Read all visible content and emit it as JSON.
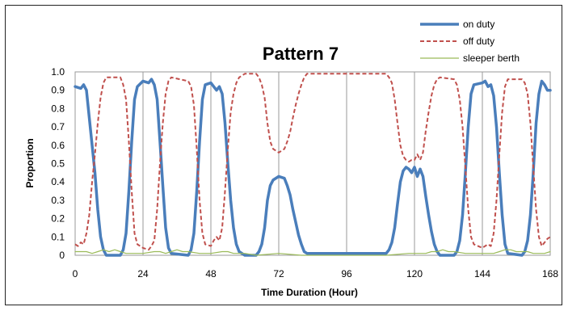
{
  "chart_data": {
    "type": "line",
    "title": "Pattern 7",
    "xlabel": "Time Duration (Hour)",
    "ylabel": "Proportion",
    "xlim": [
      0,
      168
    ],
    "ylim": [
      0,
      1
    ],
    "x_ticks": [
      "0",
      "24",
      "48",
      "72",
      "96",
      "120",
      "144",
      "168"
    ],
    "x_tick_values": [
      0,
      24,
      48,
      72,
      96,
      120,
      144,
      168
    ],
    "y_ticks": [
      "0",
      "0.1",
      "0.2",
      "0.3",
      "0.4",
      "0.5",
      "0.6",
      "0.7",
      "0.8",
      "0.9",
      "1.0"
    ],
    "y_tick_values": [
      0,
      0.1,
      0.2,
      0.3,
      0.4,
      0.5,
      0.6,
      0.7,
      0.8,
      0.9,
      1.0
    ],
    "grid": "vertical at x ticks",
    "legend_position": "top-right",
    "series": [
      {
        "name": "on duty",
        "color": "#4a7ebb",
        "style": "solid",
        "points": [
          [
            0,
            0.92
          ],
          [
            2,
            0.91
          ],
          [
            3,
            0.93
          ],
          [
            4,
            0.9
          ],
          [
            5,
            0.75
          ],
          [
            6,
            0.6
          ],
          [
            7,
            0.45
          ],
          [
            8,
            0.25
          ],
          [
            9,
            0.1
          ],
          [
            10,
            0.03
          ],
          [
            11,
            0.0
          ],
          [
            16,
            0.0
          ],
          [
            17,
            0.03
          ],
          [
            18,
            0.12
          ],
          [
            19,
            0.35
          ],
          [
            20,
            0.62
          ],
          [
            21,
            0.85
          ],
          [
            22,
            0.92
          ],
          [
            24,
            0.95
          ],
          [
            26,
            0.94
          ],
          [
            27,
            0.96
          ],
          [
            28,
            0.93
          ],
          [
            29,
            0.85
          ],
          [
            30,
            0.62
          ],
          [
            31,
            0.38
          ],
          [
            32,
            0.15
          ],
          [
            33,
            0.04
          ],
          [
            34,
            0.01
          ],
          [
            40,
            0.0
          ],
          [
            41,
            0.03
          ],
          [
            42,
            0.12
          ],
          [
            43,
            0.35
          ],
          [
            44,
            0.62
          ],
          [
            45,
            0.85
          ],
          [
            46,
            0.93
          ],
          [
            48,
            0.94
          ],
          [
            49,
            0.92
          ],
          [
            50,
            0.9
          ],
          [
            51,
            0.92
          ],
          [
            52,
            0.88
          ],
          [
            53,
            0.72
          ],
          [
            54,
            0.5
          ],
          [
            55,
            0.3
          ],
          [
            56,
            0.15
          ],
          [
            57,
            0.06
          ],
          [
            58,
            0.02
          ],
          [
            60,
            0.0
          ],
          [
            64,
            0.0
          ],
          [
            65,
            0.02
          ],
          [
            66,
            0.06
          ],
          [
            67,
            0.15
          ],
          [
            68,
            0.3
          ],
          [
            69,
            0.38
          ],
          [
            70,
            0.41
          ],
          [
            72,
            0.43
          ],
          [
            74,
            0.42
          ],
          [
            75,
            0.38
          ],
          [
            76,
            0.33
          ],
          [
            77,
            0.25
          ],
          [
            78,
            0.18
          ],
          [
            79,
            0.11
          ],
          [
            80,
            0.06
          ],
          [
            81,
            0.02
          ],
          [
            82,
            0.01
          ],
          [
            110,
            0.01
          ],
          [
            111,
            0.03
          ],
          [
            112,
            0.07
          ],
          [
            113,
            0.15
          ],
          [
            114,
            0.28
          ],
          [
            115,
            0.4
          ],
          [
            116,
            0.46
          ],
          [
            117,
            0.48
          ],
          [
            118,
            0.47
          ],
          [
            119,
            0.45
          ],
          [
            120,
            0.48
          ],
          [
            121,
            0.43
          ],
          [
            122,
            0.47
          ],
          [
            123,
            0.43
          ],
          [
            124,
            0.32
          ],
          [
            125,
            0.22
          ],
          [
            126,
            0.13
          ],
          [
            127,
            0.06
          ],
          [
            128,
            0.02
          ],
          [
            129,
            0.0
          ],
          [
            134,
            0.0
          ],
          [
            135,
            0.02
          ],
          [
            136,
            0.08
          ],
          [
            137,
            0.22
          ],
          [
            138,
            0.45
          ],
          [
            139,
            0.7
          ],
          [
            140,
            0.88
          ],
          [
            141,
            0.93
          ],
          [
            144,
            0.94
          ],
          [
            145,
            0.95
          ],
          [
            146,
            0.92
          ],
          [
            147,
            0.93
          ],
          [
            148,
            0.87
          ],
          [
            149,
            0.7
          ],
          [
            150,
            0.45
          ],
          [
            151,
            0.22
          ],
          [
            152,
            0.06
          ],
          [
            153,
            0.01
          ],
          [
            158,
            0.0
          ],
          [
            159,
            0.02
          ],
          [
            160,
            0.08
          ],
          [
            161,
            0.22
          ],
          [
            162,
            0.45
          ],
          [
            163,
            0.72
          ],
          [
            164,
            0.88
          ],
          [
            165,
            0.95
          ],
          [
            166,
            0.93
          ],
          [
            167,
            0.9
          ],
          [
            168,
            0.9
          ]
        ]
      },
      {
        "name": "off duty",
        "color": "#c0504d",
        "style": "dashed",
        "points": [
          [
            0,
            0.06
          ],
          [
            1,
            0.05
          ],
          [
            2,
            0.07
          ],
          [
            3,
            0.06
          ],
          [
            4,
            0.12
          ],
          [
            5,
            0.22
          ],
          [
            6,
            0.4
          ],
          [
            7,
            0.55
          ],
          [
            8,
            0.72
          ],
          [
            9,
            0.86
          ],
          [
            10,
            0.94
          ],
          [
            11,
            0.97
          ],
          [
            16,
            0.97
          ],
          [
            17,
            0.93
          ],
          [
            18,
            0.85
          ],
          [
            19,
            0.62
          ],
          [
            20,
            0.35
          ],
          [
            21,
            0.12
          ],
          [
            22,
            0.06
          ],
          [
            24,
            0.04
          ],
          [
            26,
            0.03
          ],
          [
            27,
            0.05
          ],
          [
            28,
            0.08
          ],
          [
            29,
            0.25
          ],
          [
            30,
            0.5
          ],
          [
            31,
            0.72
          ],
          [
            32,
            0.88
          ],
          [
            33,
            0.95
          ],
          [
            34,
            0.97
          ],
          [
            40,
            0.95
          ],
          [
            41,
            0.92
          ],
          [
            42,
            0.82
          ],
          [
            43,
            0.58
          ],
          [
            44,
            0.3
          ],
          [
            45,
            0.12
          ],
          [
            46,
            0.06
          ],
          [
            48,
            0.05
          ],
          [
            49,
            0.08
          ],
          [
            50,
            0.1
          ],
          [
            51,
            0.08
          ],
          [
            52,
            0.15
          ],
          [
            53,
            0.35
          ],
          [
            54,
            0.58
          ],
          [
            55,
            0.78
          ],
          [
            56,
            0.88
          ],
          [
            57,
            0.94
          ],
          [
            58,
            0.97
          ],
          [
            60,
            0.99
          ],
          [
            64,
            0.99
          ],
          [
            65,
            0.97
          ],
          [
            66,
            0.93
          ],
          [
            67,
            0.86
          ],
          [
            68,
            0.72
          ],
          [
            69,
            0.62
          ],
          [
            70,
            0.58
          ],
          [
            72,
            0.56
          ],
          [
            74,
            0.58
          ],
          [
            75,
            0.62
          ],
          [
            76,
            0.67
          ],
          [
            77,
            0.75
          ],
          [
            78,
            0.82
          ],
          [
            79,
            0.88
          ],
          [
            80,
            0.93
          ],
          [
            81,
            0.97
          ],
          [
            82,
            0.99
          ],
          [
            110,
            0.99
          ],
          [
            111,
            0.97
          ],
          [
            112,
            0.94
          ],
          [
            113,
            0.85
          ],
          [
            114,
            0.72
          ],
          [
            115,
            0.6
          ],
          [
            116,
            0.54
          ],
          [
            117,
            0.52
          ],
          [
            118,
            0.51
          ],
          [
            119,
            0.52
          ],
          [
            120,
            0.52
          ],
          [
            121,
            0.55
          ],
          [
            122,
            0.52
          ],
          [
            123,
            0.56
          ],
          [
            124,
            0.68
          ],
          [
            125,
            0.78
          ],
          [
            126,
            0.87
          ],
          [
            127,
            0.93
          ],
          [
            128,
            0.96
          ],
          [
            129,
            0.97
          ],
          [
            134,
            0.96
          ],
          [
            135,
            0.93
          ],
          [
            136,
            0.85
          ],
          [
            137,
            0.7
          ],
          [
            138,
            0.48
          ],
          [
            139,
            0.25
          ],
          [
            140,
            0.1
          ],
          [
            141,
            0.06
          ],
          [
            144,
            0.04
          ],
          [
            145,
            0.05
          ],
          [
            146,
            0.06
          ],
          [
            147,
            0.05
          ],
          [
            148,
            0.12
          ],
          [
            149,
            0.3
          ],
          [
            150,
            0.55
          ],
          [
            151,
            0.78
          ],
          [
            152,
            0.92
          ],
          [
            153,
            0.96
          ],
          [
            158,
            0.96
          ],
          [
            159,
            0.94
          ],
          [
            160,
            0.88
          ],
          [
            161,
            0.72
          ],
          [
            162,
            0.48
          ],
          [
            163,
            0.25
          ],
          [
            164,
            0.1
          ],
          [
            165,
            0.05
          ],
          [
            166,
            0.07
          ],
          [
            167,
            0.09
          ],
          [
            168,
            0.1
          ]
        ]
      },
      {
        "name": "sleeper berth",
        "color": "#9bbb59",
        "style": "solid",
        "points": [
          [
            0,
            0.02
          ],
          [
            4,
            0.02
          ],
          [
            6,
            0.01
          ],
          [
            8,
            0.02
          ],
          [
            10,
            0.03
          ],
          [
            12,
            0.02
          ],
          [
            14,
            0.03
          ],
          [
            16,
            0.02
          ],
          [
            18,
            0.01
          ],
          [
            20,
            0.01
          ],
          [
            24,
            0.01
          ],
          [
            28,
            0.02
          ],
          [
            30,
            0.02
          ],
          [
            32,
            0.01
          ],
          [
            34,
            0.02
          ],
          [
            36,
            0.03
          ],
          [
            38,
            0.02
          ],
          [
            40,
            0.02
          ],
          [
            44,
            0.01
          ],
          [
            48,
            0.01
          ],
          [
            52,
            0.02
          ],
          [
            54,
            0.02
          ],
          [
            56,
            0.01
          ],
          [
            60,
            0.01
          ],
          [
            64,
            0.0
          ],
          [
            72,
            0.01
          ],
          [
            80,
            0.0
          ],
          [
            96,
            0.0
          ],
          [
            110,
            0.0
          ],
          [
            118,
            0.01
          ],
          [
            124,
            0.01
          ],
          [
            126,
            0.02
          ],
          [
            128,
            0.02
          ],
          [
            130,
            0.03
          ],
          [
            132,
            0.02
          ],
          [
            134,
            0.02
          ],
          [
            138,
            0.01
          ],
          [
            144,
            0.01
          ],
          [
            148,
            0.01
          ],
          [
            150,
            0.02
          ],
          [
            152,
            0.03
          ],
          [
            154,
            0.03
          ],
          [
            156,
            0.02
          ],
          [
            158,
            0.02
          ],
          [
            160,
            0.02
          ],
          [
            162,
            0.01
          ],
          [
            166,
            0.01
          ],
          [
            168,
            0.02
          ]
        ]
      }
    ]
  }
}
